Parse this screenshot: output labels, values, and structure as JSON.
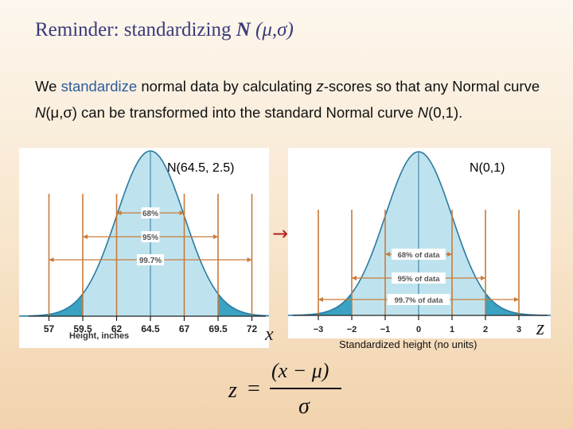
{
  "title": {
    "prefix": "Reminder: standardizing",
    "N": "N",
    "params": "(μ,σ)"
  },
  "paragraph": {
    "p1": "We ",
    "p2": "standardize",
    "p3": " normal data by calculating ",
    "p4": "z",
    "p5": "-scores so that any Normal curve ",
    "p6": "N",
    "p7": "(μ,σ)",
    "p8": " can be transformed into the standard Normal curve ",
    "p9": "N",
    "p10": "(0,1)."
  },
  "left_chart": {
    "label": "N(64.5, 2.5)",
    "ticks": [
      "57",
      "59.5",
      "62",
      "64.5",
      "67",
      "69.5",
      "72"
    ],
    "pct_labels": [
      "68%",
      "95%",
      "99.7%"
    ],
    "axis_title": "Height, inches",
    "x_var": "x",
    "color_fill": "#bfe3ee",
    "color_tail": "#3aa2c2",
    "color_lines": "#c97b3a"
  },
  "right_chart": {
    "label": "N(0,1)",
    "ticks": [
      "−3",
      "−2",
      "−1",
      "0",
      "1",
      "2",
      "3"
    ],
    "pct_labels": [
      "68% of data",
      "95% of data",
      "99.7% of data"
    ],
    "axis_title": "Standardized height (no units)",
    "z_var": "z"
  },
  "arrow": "→",
  "formula": {
    "lhs": "z",
    "eq": "=",
    "numerator": "(x − μ)",
    "denominator": "σ"
  }
}
